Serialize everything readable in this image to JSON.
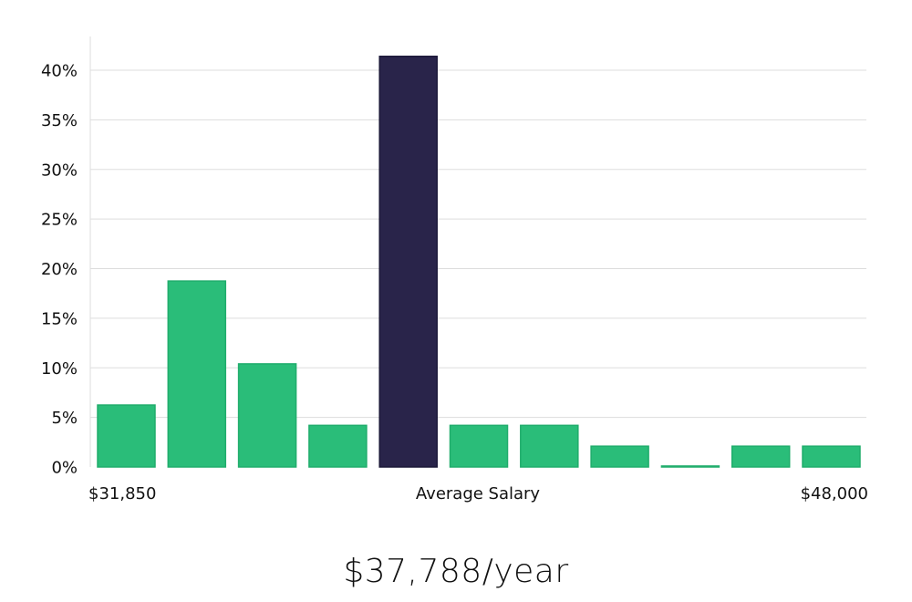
{
  "colors": {
    "bar": "#2abd79",
    "bar_border": "#20ad6c",
    "highlight": "#29244a",
    "highlight_border": "#1b1838"
  },
  "chart_data": {
    "type": "bar",
    "title": "",
    "xlabel": "",
    "ylabel": "",
    "ylim": [
      0,
      40
    ],
    "y_ticks": [
      "0%",
      "5%",
      "10%",
      "15%",
      "20%",
      "25%",
      "30%",
      "35%",
      "40%"
    ],
    "y_tick_values": [
      0,
      5,
      10,
      15,
      20,
      25,
      30,
      35,
      40
    ],
    "grid": true,
    "values": [
      6.25,
      18.75,
      10.4,
      4.2,
      41.4,
      4.2,
      4.2,
      2.1,
      0.1,
      2.1,
      2.1
    ],
    "highlight_index": 4,
    "x_labels": {
      "left": "$31,850",
      "center": "Average Salary",
      "right": "$48,000"
    }
  },
  "average_salary": "$37,788/year"
}
